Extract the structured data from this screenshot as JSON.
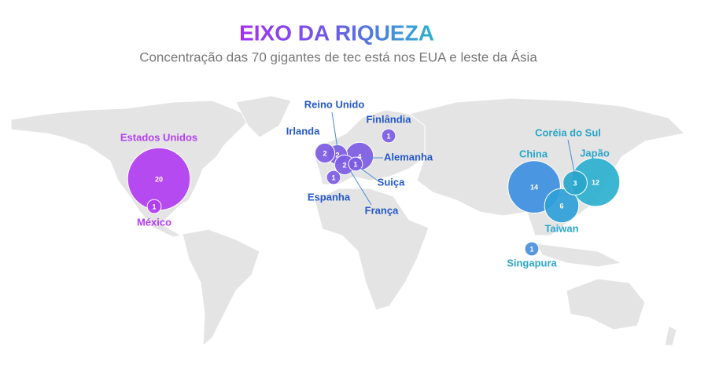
{
  "title": "EIXO DA RIQUEZA",
  "subtitle": "Concentração das 70 gigantes de tec está nos EUA e leste da Ásia",
  "bubbles": [
    {
      "label": "Estados Unidos",
      "value": 20,
      "color": "#b23df2",
      "label_color": "#b23df2"
    },
    {
      "label": "México",
      "value": 1,
      "color": "#b23df2",
      "label_color": "#b23df2"
    },
    {
      "label": "Reino Unido",
      "value": 2,
      "color": "#7d5ce3",
      "label_color": "#2457c9"
    },
    {
      "label": "Irlanda",
      "value": 2,
      "color": "#7d5ce3",
      "label_color": "#2457c9"
    },
    {
      "label": "Alemanha",
      "value": 4,
      "color": "#7d5ce3",
      "label_color": "#2457c9"
    },
    {
      "label": "Finlândia",
      "value": 1,
      "color": "#7d5ce3",
      "label_color": "#2457c9"
    },
    {
      "label": "França",
      "value": 2,
      "color": "#7d5ce3",
      "label_color": "#2457c9"
    },
    {
      "label": "Suiça",
      "value": 1,
      "color": "#7d5ce3",
      "label_color": "#2457c9"
    },
    {
      "label": "Espanha",
      "value": 1,
      "color": "#7d5ce3",
      "label_color": "#2457c9"
    },
    {
      "label": "China",
      "value": 14,
      "color": "#3d8fe0",
      "label_color": "#2aa5c8"
    },
    {
      "label": "Coréia do Sul",
      "value": 3,
      "color": "#2aa6cc",
      "label_color": "#2aa5c8"
    },
    {
      "label": "Japão",
      "value": 12,
      "color": "#2db0cf",
      "label_color": "#2aa5c8"
    },
    {
      "label": "Taiwan",
      "value": 6,
      "color": "#2f9fd8",
      "label_color": "#2aa5c8"
    },
    {
      "label": "Singapura",
      "value": 1,
      "color": "#4a8fdc",
      "label_color": "#2aa5c8"
    }
  ]
}
